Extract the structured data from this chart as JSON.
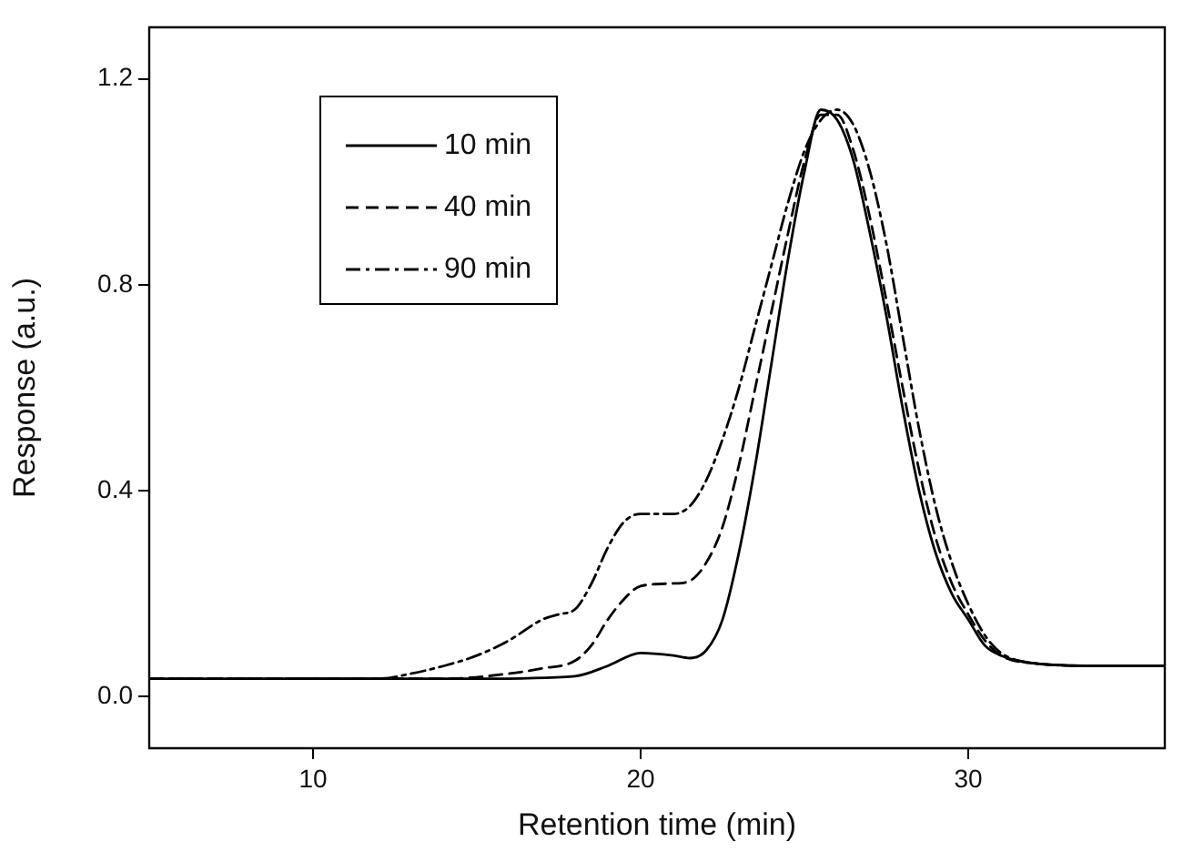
{
  "chart_data": {
    "type": "line",
    "xlabel": "Retention time (min)",
    "ylabel": "Response (a.u.)",
    "xlim": [
      5,
      36
    ],
    "xticks": [
      10,
      20,
      30
    ],
    "ylim": [
      -0.1,
      1.3
    ],
    "yticks": [
      {
        "value": 0,
        "label": "0.0"
      },
      0.4,
      0.8,
      1.2
    ],
    "grid": false,
    "legend": "top left",
    "marker": "none",
    "series": [
      {
        "name": "10 min",
        "color": "#000000",
        "line_style": "solid",
        "x": [
          5,
          10,
          15,
          18,
          19,
          20,
          21,
          21.5,
          22,
          22.5,
          23,
          23.5,
          24,
          24.5,
          25,
          25.5,
          26,
          26.5,
          27,
          27.5,
          28,
          28.5,
          29,
          29.5,
          30,
          30.5,
          31,
          32,
          34,
          36
        ],
        "values": [
          0.035,
          0.035,
          0.035,
          0.04,
          0.06,
          0.085,
          0.08,
          0.075,
          0.09,
          0.15,
          0.28,
          0.45,
          0.65,
          0.85,
          1.02,
          1.14,
          1.12,
          1.04,
          0.9,
          0.74,
          0.56,
          0.4,
          0.28,
          0.2,
          0.15,
          0.1,
          0.08,
          0.065,
          0.06,
          0.06
        ]
      },
      {
        "name": "40 min",
        "color": "#000000",
        "line_style": "dashed",
        "x": [
          5,
          10,
          14,
          16,
          17,
          18,
          18.5,
          19,
          19.5,
          20,
          21,
          21.5,
          22,
          22.5,
          23,
          23.5,
          24,
          24.5,
          25,
          25.5,
          26,
          26.5,
          27,
          27.5,
          28,
          28.5,
          29,
          29.5,
          30,
          30.5,
          31,
          32,
          34,
          36
        ],
        "values": [
          0.035,
          0.035,
          0.035,
          0.045,
          0.055,
          0.07,
          0.1,
          0.15,
          0.19,
          0.215,
          0.22,
          0.225,
          0.26,
          0.33,
          0.45,
          0.6,
          0.75,
          0.9,
          1.04,
          1.13,
          1.13,
          1.06,
          0.93,
          0.77,
          0.6,
          0.44,
          0.31,
          0.22,
          0.16,
          0.11,
          0.08,
          0.065,
          0.06,
          0.06
        ]
      },
      {
        "name": "90 min",
        "color": "#000000",
        "line_style": "dashdot",
        "x": [
          5,
          10,
          12,
          13,
          14,
          15,
          16,
          17,
          17.5,
          18,
          18.5,
          19,
          19.5,
          20,
          21,
          21.5,
          22,
          22.5,
          23,
          23.5,
          24,
          24.5,
          25,
          25.5,
          26,
          26.5,
          27,
          27.5,
          28,
          28.5,
          29,
          29.5,
          30,
          30.5,
          31,
          32,
          34,
          36
        ],
        "values": [
          0.035,
          0.035,
          0.035,
          0.045,
          0.06,
          0.08,
          0.11,
          0.15,
          0.16,
          0.17,
          0.22,
          0.29,
          0.34,
          0.355,
          0.355,
          0.37,
          0.42,
          0.5,
          0.6,
          0.72,
          0.84,
          0.96,
          1.06,
          1.12,
          1.14,
          1.11,
          1.02,
          0.88,
          0.7,
          0.52,
          0.37,
          0.26,
          0.18,
          0.12,
          0.085,
          0.065,
          0.06,
          0.06
        ]
      }
    ]
  }
}
